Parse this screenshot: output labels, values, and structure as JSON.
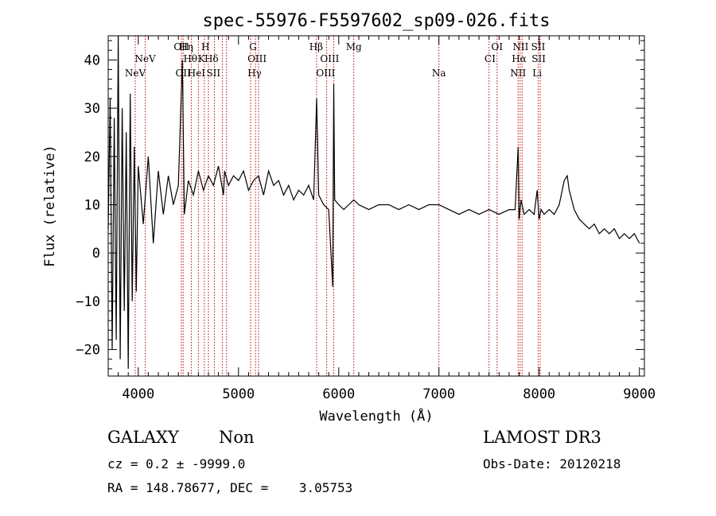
{
  "chart_data": {
    "type": "line",
    "title": "spec-55976-F5597602_sp09-026.fits",
    "xlabel": "Wavelength (Å)",
    "ylabel": "Flux (relative)",
    "xlim": [
      3700,
      9050
    ],
    "ylim": [
      -25.5,
      45
    ],
    "x_ticks": [
      4000,
      5000,
      6000,
      7000,
      8000,
      9000
    ],
    "y_ticks": [
      -20,
      -10,
      0,
      10,
      20,
      30,
      40
    ],
    "series": [
      {
        "name": "flux",
        "x": [
          3700,
          3720,
          3740,
          3760,
          3780,
          3800,
          3820,
          3840,
          3860,
          3880,
          3900,
          3920,
          3940,
          3960,
          3980,
          4000,
          4050,
          4100,
          4150,
          4200,
          4250,
          4300,
          4350,
          4400,
          4440,
          4460,
          4500,
          4550,
          4600,
          4650,
          4700,
          4750,
          4800,
          4850,
          4861,
          4900,
          4950,
          5000,
          5050,
          5100,
          5150,
          5200,
          5250,
          5300,
          5350,
          5400,
          5450,
          5500,
          5550,
          5600,
          5650,
          5700,
          5750,
          5780,
          5800,
          5850,
          5900,
          5940,
          5950,
          5960,
          6000,
          6050,
          6100,
          6150,
          6200,
          6300,
          6400,
          6500,
          6600,
          6700,
          6800,
          6900,
          7000,
          7100,
          7200,
          7300,
          7400,
          7500,
          7600,
          7700,
          7760,
          7790,
          7800,
          7820,
          7850,
          7900,
          7950,
          7980,
          8000,
          8020,
          8050,
          8100,
          8150,
          8200,
          8250,
          8280,
          8300,
          8350,
          8400,
          8450,
          8500,
          8550,
          8600,
          8650,
          8700,
          8750,
          8800,
          8850,
          8900,
          8950,
          9000
        ],
        "values": [
          5,
          32,
          -20,
          28,
          -18,
          45,
          -22,
          30,
          -12,
          25,
          -24,
          33,
          -10,
          22,
          -8,
          18,
          6,
          20,
          2,
          17,
          8,
          16,
          10,
          14,
          40,
          8,
          15,
          12,
          17,
          13,
          16,
          14,
          18,
          12,
          17,
          14,
          16,
          15,
          17,
          13,
          15,
          16,
          12,
          17,
          14,
          15,
          12,
          14,
          11,
          13,
          12,
          14,
          11,
          32,
          12,
          10,
          9,
          -7,
          35,
          11,
          10,
          9,
          10,
          11,
          10,
          9,
          10,
          10,
          9,
          10,
          9,
          10,
          10,
          9,
          8,
          9,
          8,
          9,
          8,
          9,
          9,
          22,
          7,
          11,
          8,
          9,
          8,
          13,
          7,
          9,
          8,
          9,
          8,
          10,
          15,
          16,
          13,
          9,
          7,
          6,
          5,
          6,
          4,
          5,
          4,
          5,
          3,
          4,
          3,
          4,
          2
        ]
      }
    ],
    "emission_lines": [
      {
        "label": "NeV",
        "x": 3970,
        "row": 3
      },
      {
        "label": "NeV",
        "x": 4070,
        "row": 2
      },
      {
        "label": "OII",
        "x": 4430,
        "row": 1
      },
      {
        "label": "OII",
        "x": 4448,
        "row": 3
      },
      {
        "label": "Hη",
        "x": 4478,
        "row": 1
      },
      {
        "label": "Hθ",
        "x": 4520,
        "row": 2
      },
      {
        "label": "HeI",
        "x": 4580,
        "row": 3
      },
      {
        "label": "K",
        "x": 4630,
        "row": 2
      },
      {
        "label": "H",
        "x": 4670,
        "row": 1
      },
      {
        "label": "Hδ",
        "x": 4730,
        "row": 2
      },
      {
        "label": "SII",
        "x": 4750,
        "row": 3
      },
      {
        "label": "G",
        "x": 5145,
        "row": 1
      },
      {
        "label": "OIII",
        "x": 5185,
        "row": 2
      },
      {
        "label": "Hγ",
        "x": 5160,
        "row": 3
      },
      {
        "label": "Hβ",
        "x": 5775,
        "row": 1
      },
      {
        "label": "OIII",
        "x": 5910,
        "row": 2
      },
      {
        "label": "OIII",
        "x": 5870,
        "row": 3
      },
      {
        "label": "Mg",
        "x": 6150,
        "row": 1
      },
      {
        "label": "Na",
        "x": 7000,
        "row": 3
      },
      {
        "label": "OI",
        "x": 7580,
        "row": 1
      },
      {
        "label": "CI",
        "x": 7510,
        "row": 2
      },
      {
        "label": "NII",
        "x": 7815,
        "row": 1
      },
      {
        "label": "Hα",
        "x": 7800,
        "row": 2
      },
      {
        "label": "NII",
        "x": 7790,
        "row": 3
      },
      {
        "label": "SII",
        "x": 7990,
        "row": 1
      },
      {
        "label": "SII",
        "x": 7995,
        "row": 2
      },
      {
        "label": "Li",
        "x": 7980,
        "row": 3
      }
    ],
    "emission_line_positions": [
      3970,
      4070,
      4430,
      4448,
      4530,
      4600,
      4660,
      4700,
      4760,
      4840,
      4880,
      5120,
      5170,
      5200,
      5780,
      5880,
      5950,
      6150,
      7000,
      7500,
      7580,
      7790,
      7810,
      7830,
      7990,
      8010
    ],
    "line_color": "#cc0000"
  },
  "info": {
    "object_class": "GALAXY",
    "subclass": "Non",
    "survey": "LAMOST DR3",
    "cz": "cz = 0.2 ± -9999.0",
    "obs_date": "Obs-Date: 20120218",
    "coords": "RA = 148.78677, DEC =    3.05753"
  }
}
